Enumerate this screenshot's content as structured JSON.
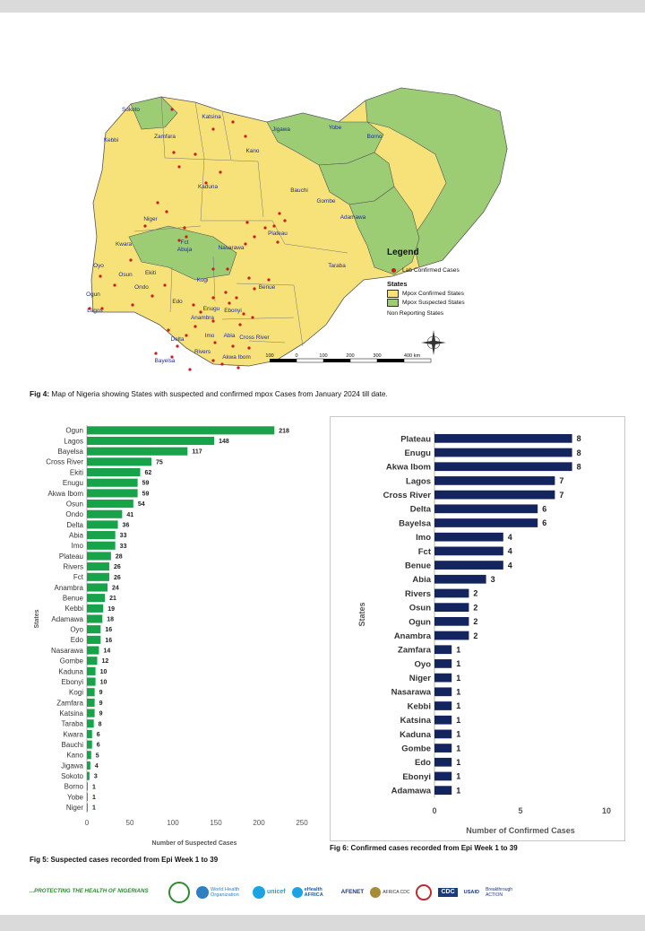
{
  "map": {
    "state_labels": [
      "Sokoto",
      "Katsina",
      "Jigawa",
      "Yobe",
      "Borno",
      "Kebbi",
      "Zamfara",
      "Kano",
      "Kaduna",
      "Bauchi",
      "Gombe",
      "Adamawa",
      "Niger",
      "Plateau",
      "Fct",
      "Abuja",
      "Nasarawa",
      "Taraba",
      "Kwara",
      "Oyo",
      "Osun",
      "Ekiti",
      "Ondo",
      "Kogi",
      "Benue",
      "Ogun",
      "Lagos",
      "Edo",
      "Enugu",
      "Anambra",
      "Ebonyi",
      "Delta",
      "Imo",
      "Abia",
      "Cross River",
      "Bayelsa",
      "Rivers",
      "Akwa Ibom"
    ],
    "scale_labels": [
      "100",
      "0",
      "100",
      "200",
      "300",
      "400 km"
    ],
    "legend": {
      "title": "Legend",
      "dot_label": "Lab Confirmed Cases",
      "states_heading": "States",
      "confirmed_label": "Mpox Confirmed States",
      "suspected_label": "Mpox Suspected States",
      "nonreporting_label": "Non Reporting States",
      "confirmed_color": "#f7e27a",
      "suspected_color": "#9ccc74",
      "dot_color": "#cc1b1b"
    }
  },
  "fig4": {
    "label": "Fig 4:",
    "text": " Map of Nigeria showing States with suspected and confirmed mpox Cases from January 2024 till date."
  },
  "fig5_caption": "Fig 5: Suspected cases recorded from Epi Week 1 to 39",
  "fig6_caption": "Fig 6: Confirmed cases recorded from Epi Week 1 to 39",
  "footer": {
    "tagline": "...PROTECTING THE HEALTH OF NIGERIANS",
    "logos": [
      "World Health Organization",
      "unicef",
      "eHealth AFRICA",
      "AFENET",
      "AFRICA CDC",
      "CDC",
      "USAID",
      "Breakthrough ACTION"
    ]
  },
  "chart_data": [
    {
      "type": "bar",
      "orientation": "horizontal",
      "title": "",
      "xlabel": "Number of Suspected Cases",
      "ylabel": "States",
      "color": "#17a34a",
      "xlim": [
        0,
        250
      ],
      "xticks": [
        0,
        50,
        100,
        150,
        200,
        250
      ],
      "categories": [
        "Ogun",
        "Lagos",
        "Bayelsa",
        "Cross River",
        "Ekiti",
        "Enugu",
        "Akwa Ibom",
        "Osun",
        "Ondo",
        "Delta",
        "Abia",
        "Imo",
        "Plateau",
        "Rivers",
        "Fct",
        "Anambra",
        "Benue",
        "Kebbi",
        "Adamawa",
        "Oyo",
        "Edo",
        "Nasarawa",
        "Gombe",
        "Kaduna",
        "Ebonyi",
        "Kogi",
        "Zamfara",
        "Katsina",
        "Taraba",
        "Kwara",
        "Bauchi",
        "Kano",
        "Jigawa",
        "Sokoto",
        "Borno",
        "Yobe",
        "Niger"
      ],
      "values": [
        218,
        148,
        117,
        75,
        62,
        59,
        59,
        54,
        41,
        36,
        33,
        33,
        28,
        26,
        26,
        24,
        21,
        19,
        18,
        16,
        16,
        14,
        12,
        10,
        10,
        9,
        9,
        9,
        8,
        6,
        6,
        5,
        4,
        3,
        1,
        1,
        1
      ]
    },
    {
      "type": "bar",
      "orientation": "horizontal",
      "title": "",
      "xlabel": "Number of Confirmed Cases",
      "ylabel": "States",
      "color": "#14245e",
      "xlim": [
        0,
        10
      ],
      "xticks": [
        0,
        5,
        10
      ],
      "categories": [
        "Plateau",
        "Enugu",
        "Akwa Ibom",
        "Lagos",
        "Cross River",
        "Delta",
        "Bayelsa",
        "Imo",
        "Fct",
        "Benue",
        "Abia",
        "Rivers",
        "Osun",
        "Ogun",
        "Anambra",
        "Zamfara",
        "Oyo",
        "Niger",
        "Nasarawa",
        "Kebbi",
        "Katsina",
        "Kaduna",
        "Gombe",
        "Edo",
        "Ebonyi",
        "Adamawa"
      ],
      "values": [
        8,
        8,
        8,
        7,
        7,
        6,
        6,
        4,
        4,
        4,
        3,
        2,
        2,
        2,
        2,
        1,
        1,
        1,
        1,
        1,
        1,
        1,
        1,
        1,
        1,
        1
      ]
    }
  ]
}
